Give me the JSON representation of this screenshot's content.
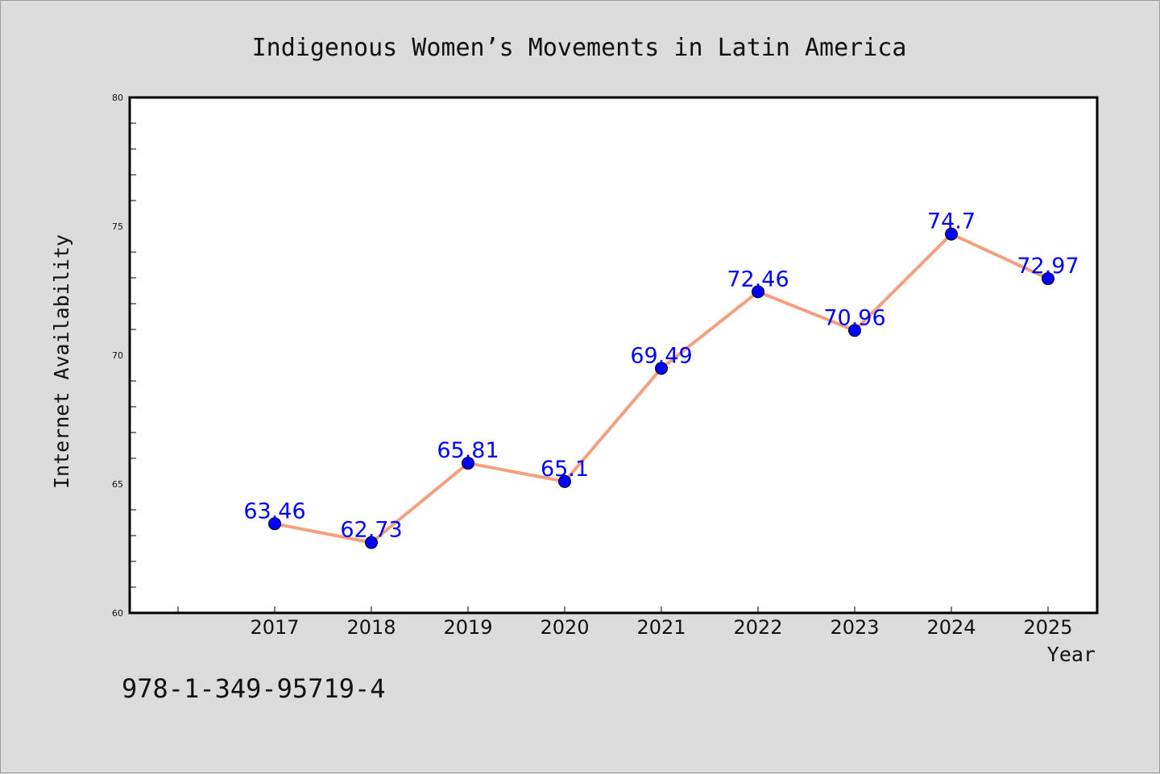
{
  "chart_data": {
    "type": "line",
    "title": "Indigenous Women’s Movements in Latin America",
    "xlabel": "Year",
    "ylabel": "Internet Availability",
    "categories": [
      "2017",
      "2018",
      "2019",
      "2020",
      "2021",
      "2022",
      "2023",
      "2024",
      "2025"
    ],
    "series": [
      {
        "values": [
          63.46,
          62.73,
          65.81,
          65.1,
          69.49,
          72.46,
          70.96,
          74.7,
          72.97
        ],
        "labels": [
          "63.46",
          "62.73",
          "65.81",
          "65.1",
          "69.49",
          "72.46",
          "70.96",
          "74.7",
          "72.97"
        ],
        "line_color": "#f4a07e",
        "marker_color": "#0000ff"
      }
    ],
    "ylim": [
      60,
      80
    ],
    "yticks": [
      "60",
      "65",
      "70",
      "75",
      "80"
    ],
    "grid": false,
    "legend": "none"
  },
  "footer": {
    "isbn": "978-1-349-95719-4"
  },
  "colors": {
    "background": "#dcdcdc",
    "plot_area": "#ffffff",
    "line": "#f4a07e",
    "marker": "#0000ff",
    "data_label": "#0000ff"
  }
}
